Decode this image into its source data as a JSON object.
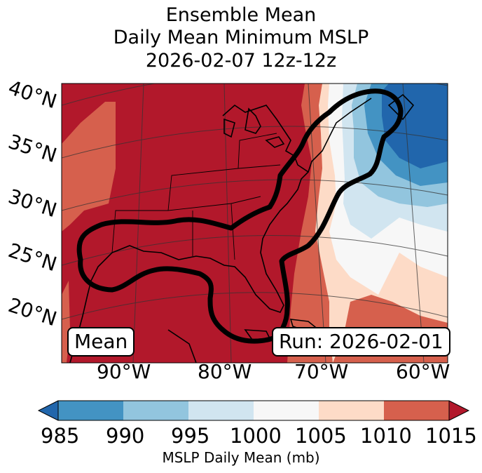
{
  "title": {
    "line1": "Ensemble Mean",
    "line2": "Daily Mean Minimum MSLP",
    "line3": "2026-02-07 12z-12z"
  },
  "map": {
    "lat_labels": [
      "40°N",
      "35°N",
      "30°N",
      "25°N",
      "20°N"
    ],
    "lon_labels": [
      "90°W",
      "80°W",
      "70°W",
      "60°W"
    ],
    "mean_box": "Mean",
    "run_box": "Run: 2026-02-01",
    "contour_color": "#000000"
  },
  "colorbar": {
    "label": "MSLP Daily Mean (mb)",
    "ticks": [
      "985",
      "990",
      "995",
      "1000",
      "1005",
      "1010",
      "1015"
    ],
    "colors": [
      "#2166ac",
      "#4393c3",
      "#92c5de",
      "#d1e5f0",
      "#f7f7f7",
      "#fddbc7",
      "#d6604d",
      "#b2182b"
    ]
  }
}
